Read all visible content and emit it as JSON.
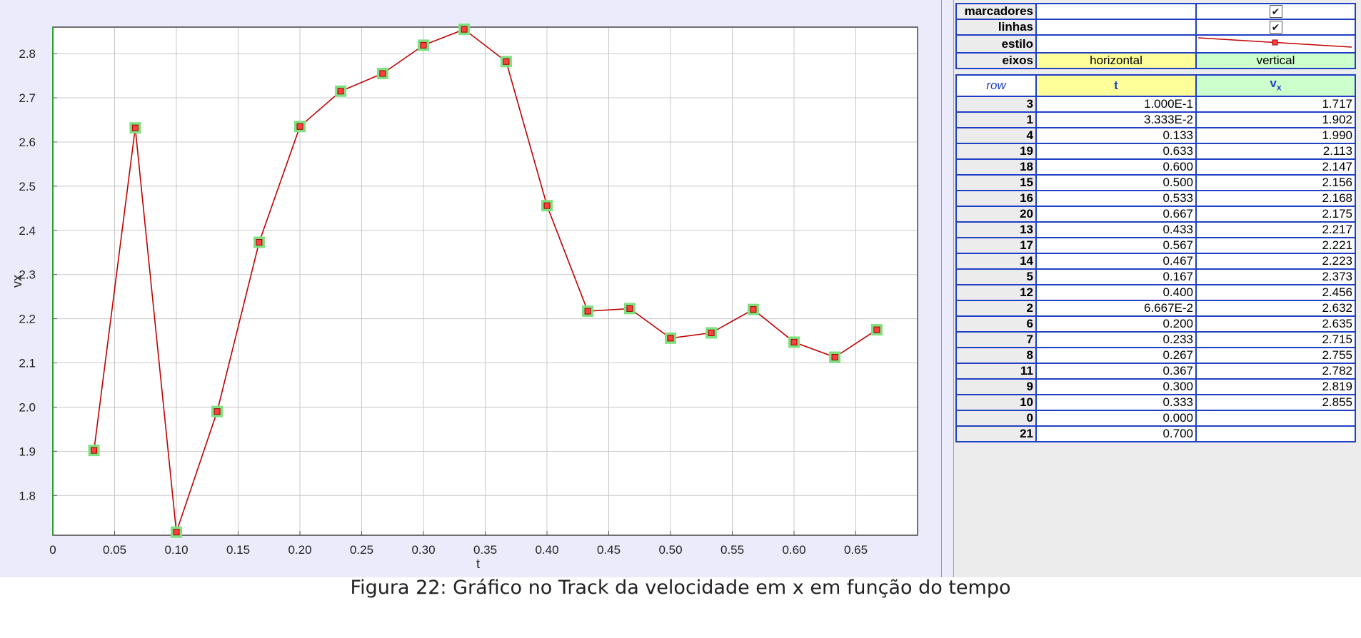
{
  "chart_data": {
    "type": "line",
    "xlabel": "t",
    "ylabel": "vx",
    "xlim": [
      0,
      0.7
    ],
    "ylim": [
      1.71,
      2.86
    ],
    "x_ticks": [
      "0",
      "0.05",
      "0.10",
      "0.15",
      "0.20",
      "0.25",
      "0.30",
      "0.35",
      "0.40",
      "0.45",
      "0.50",
      "0.55",
      "0.60",
      "0.65"
    ],
    "y_ticks": [
      "1.8",
      "1.9",
      "2.0",
      "2.1",
      "2.2",
      "2.3",
      "2.4",
      "2.5",
      "2.6",
      "2.7",
      "2.8"
    ],
    "grid": true,
    "x": [
      0.0333,
      0.0667,
      0.1,
      0.133,
      0.167,
      0.2,
      0.233,
      0.267,
      0.3,
      0.333,
      0.367,
      0.4,
      0.433,
      0.467,
      0.5,
      0.533,
      0.567,
      0.6,
      0.633,
      0.667
    ],
    "y": [
      1.902,
      2.632,
      1.717,
      1.99,
      2.373,
      2.635,
      2.715,
      2.755,
      2.819,
      2.855,
      2.782,
      2.456,
      2.217,
      2.223,
      2.156,
      2.168,
      2.221,
      2.147,
      2.113,
      2.175
    ],
    "colors": {
      "line": "#c00000",
      "marker_fill": "#ff4040",
      "marker_highlight": "#7fe07f",
      "grid": "#c8c8c8",
      "frame": "#444444",
      "left_axis": "#2ca02c"
    }
  },
  "settings": {
    "markers_label": "marcadores",
    "lines_label": "linhas",
    "style_label": "estilo",
    "axes_label": "eixos",
    "horizontal_label": "horizontal",
    "vertical_label": "vertical",
    "markers_checked": true,
    "lines_checked": true,
    "check_glyph": "✔"
  },
  "table": {
    "header_row": "row",
    "header_t": "t",
    "header_v": "v",
    "header_v_sub": "x",
    "rows": [
      {
        "row": "3",
        "t": "1.000E-1",
        "v": "1.717"
      },
      {
        "row": "1",
        "t": "3.333E-2",
        "v": "1.902"
      },
      {
        "row": "4",
        "t": "0.133",
        "v": "1.990"
      },
      {
        "row": "19",
        "t": "0.633",
        "v": "2.113"
      },
      {
        "row": "18",
        "t": "0.600",
        "v": "2.147"
      },
      {
        "row": "15",
        "t": "0.500",
        "v": "2.156"
      },
      {
        "row": "16",
        "t": "0.533",
        "v": "2.168"
      },
      {
        "row": "20",
        "t": "0.667",
        "v": "2.175"
      },
      {
        "row": "13",
        "t": "0.433",
        "v": "2.217"
      },
      {
        "row": "17",
        "t": "0.567",
        "v": "2.221"
      },
      {
        "row": "14",
        "t": "0.467",
        "v": "2.223"
      },
      {
        "row": "5",
        "t": "0.167",
        "v": "2.373"
      },
      {
        "row": "12",
        "t": "0.400",
        "v": "2.456"
      },
      {
        "row": "2",
        "t": "6.667E-2",
        "v": "2.632"
      },
      {
        "row": "6",
        "t": "0.200",
        "v": "2.635"
      },
      {
        "row": "7",
        "t": "0.233",
        "v": "2.715"
      },
      {
        "row": "8",
        "t": "0.267",
        "v": "2.755"
      },
      {
        "row": "11",
        "t": "0.367",
        "v": "2.782"
      },
      {
        "row": "9",
        "t": "0.300",
        "v": "2.819"
      },
      {
        "row": "10",
        "t": "0.333",
        "v": "2.855"
      },
      {
        "row": "0",
        "t": "0.000",
        "v": ""
      },
      {
        "row": "21",
        "t": "0.700",
        "v": ""
      }
    ]
  },
  "caption": "Figura 22: Gráfico no Track da velocidade em x em função do tempo"
}
